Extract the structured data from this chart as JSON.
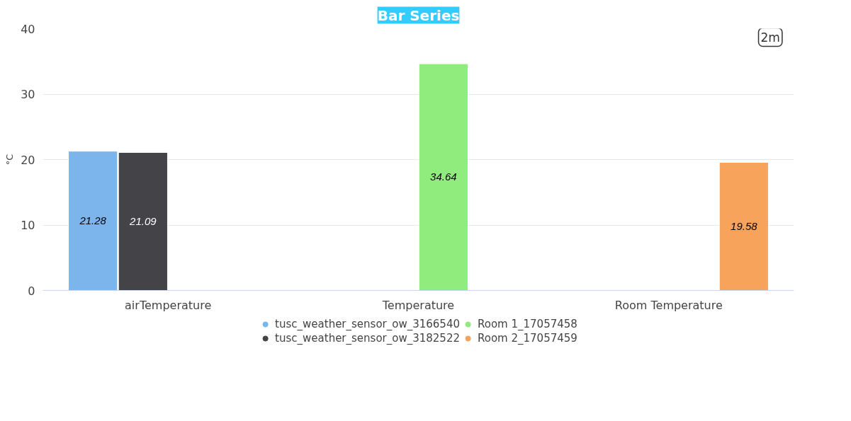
{
  "chart_data": {
    "type": "bar",
    "title": "Bar Series",
    "ylabel": "°C",
    "annotations": [
      "2m"
    ],
    "categories": [
      "airTemperature",
      "Temperature",
      "Room Temperature"
    ],
    "series": [
      {
        "name": "tusc_weather_sensor_ow_3166540",
        "color": "#7cb5ec",
        "values": [
          21.28,
          null,
          null
        ]
      },
      {
        "name": "tusc_weather_sensor_ow_3182522",
        "color": "#434348",
        "values": [
          21.09,
          null,
          null
        ]
      },
      {
        "name": "Room 1_17057458",
        "color": "#90ed7d",
        "values": [
          null,
          34.64,
          null
        ]
      },
      {
        "name": "Room 2_17057459",
        "color": "#f7a35c",
        "values": [
          null,
          null,
          19.58
        ]
      }
    ],
    "ylim": [
      0,
      40
    ],
    "yticks": [
      0,
      10,
      20,
      30,
      40
    ],
    "grid": "y",
    "legend": "bottom",
    "data_labels": true
  }
}
